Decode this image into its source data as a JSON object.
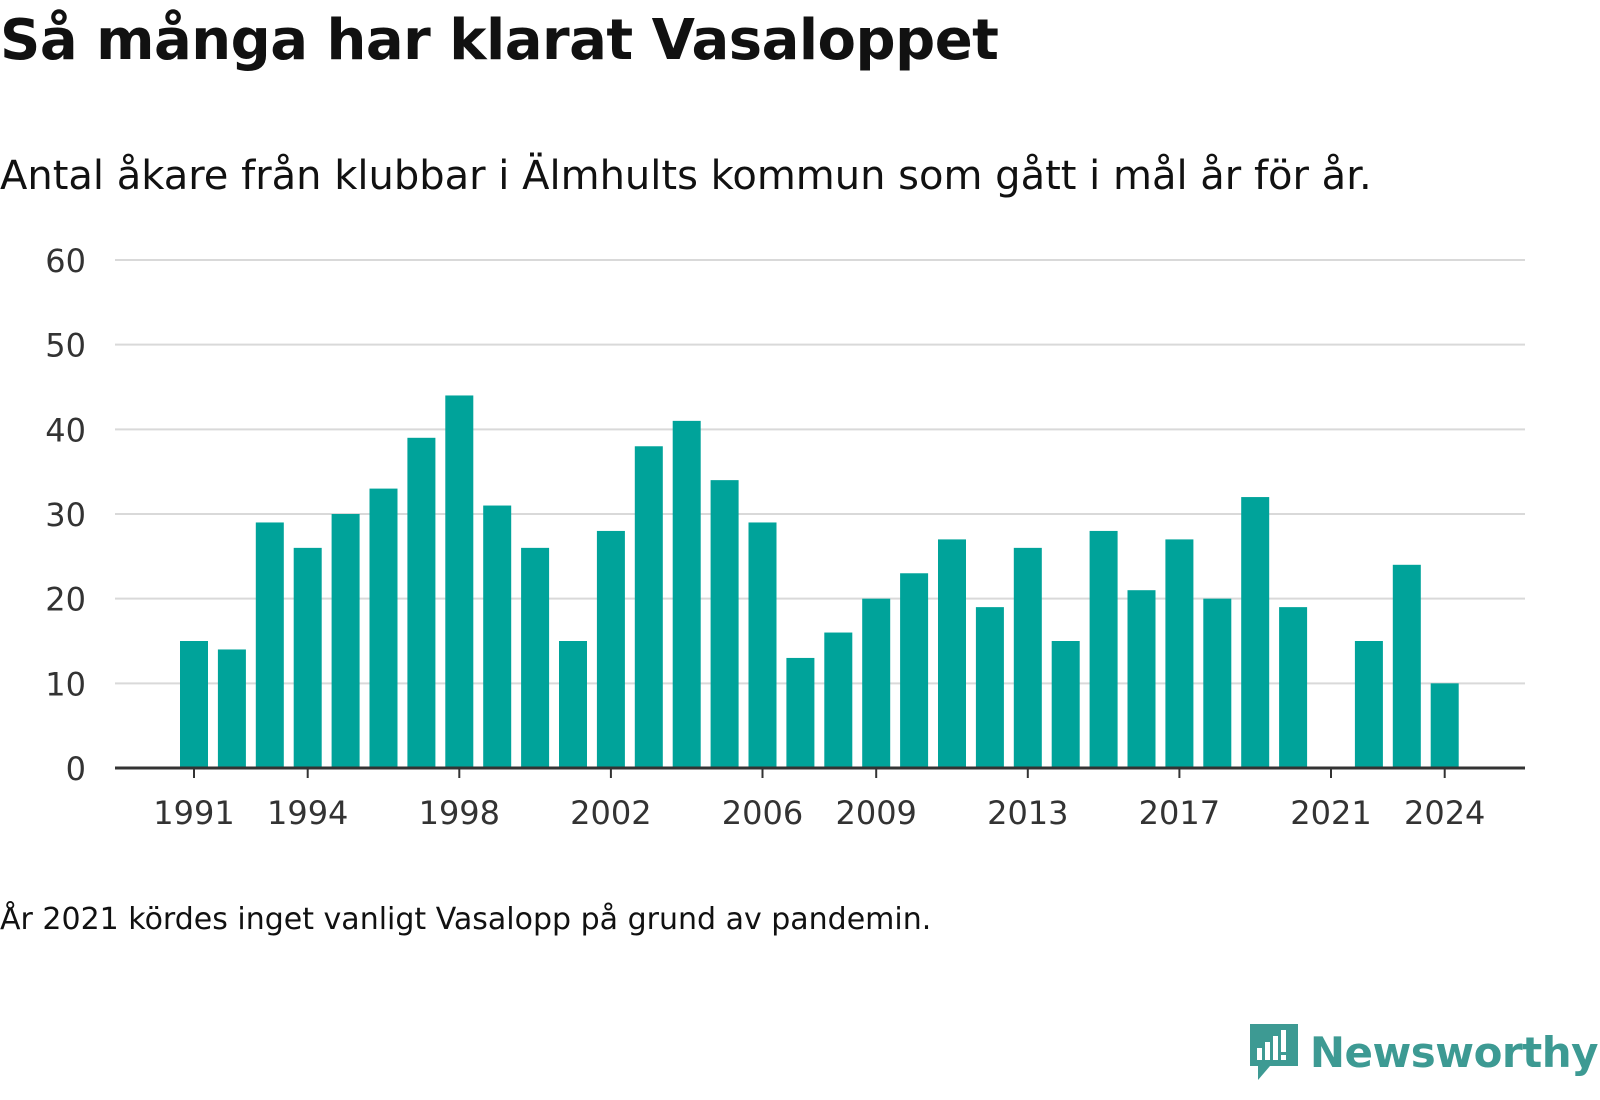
{
  "header": {
    "title": "Så många har klarat Vasaloppet",
    "subtitle": "Antal åkare från klubbar i Älmhults kommun som gått i mål år för år."
  },
  "footer": {
    "note": "År 2021 kördes inget vanligt Vasalopp på grund av pandemin.",
    "brand": "Newsworthy",
    "brand_icon": "bar-chart-speech-bubble-icon"
  },
  "colors": {
    "bar": "#00a39a",
    "grid": "#d9d9d9",
    "axis": "#333333",
    "brand": "#3d9a93"
  },
  "chart_data": {
    "type": "bar",
    "x": [
      1991,
      1992,
      1993,
      1994,
      1995,
      1996,
      1997,
      1998,
      1999,
      2000,
      2001,
      2002,
      2003,
      2004,
      2005,
      2006,
      2007,
      2008,
      2009,
      2010,
      2011,
      2012,
      2013,
      2014,
      2015,
      2016,
      2017,
      2018,
      2019,
      2020,
      2021,
      2022,
      2023,
      2024
    ],
    "values": [
      15,
      14,
      29,
      26,
      30,
      33,
      39,
      44,
      31,
      26,
      15,
      28,
      38,
      41,
      34,
      29,
      13,
      16,
      20,
      23,
      27,
      19,
      26,
      15,
      28,
      21,
      27,
      20,
      32,
      19,
      null,
      15,
      24,
      10
    ],
    "x_ticks": [
      "1991",
      "1994",
      "1998",
      "2002",
      "2006",
      "2009",
      "2013",
      "2017",
      "2021",
      "2024"
    ],
    "y_ticks": [
      "0",
      "10",
      "20",
      "30",
      "40",
      "50",
      "60"
    ],
    "ylim": [
      0,
      60
    ],
    "grid": true,
    "xlabel": "",
    "ylabel": ""
  }
}
